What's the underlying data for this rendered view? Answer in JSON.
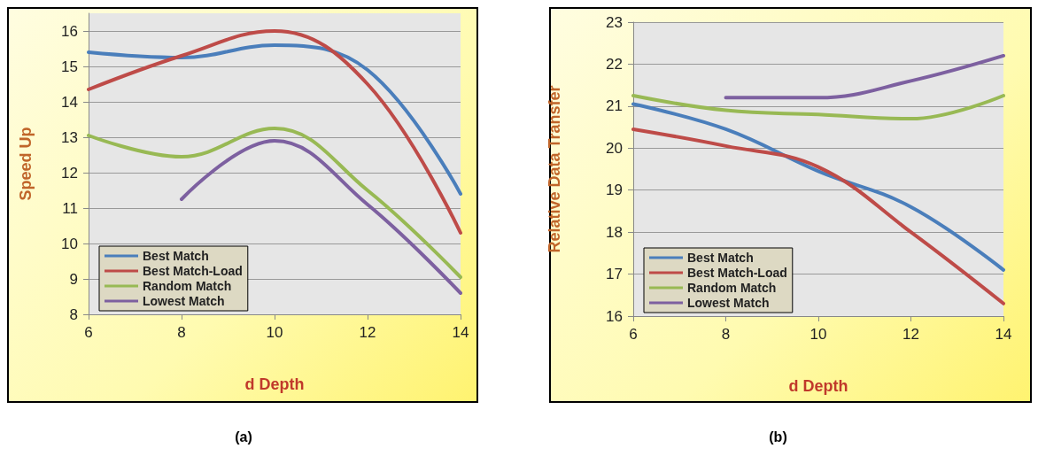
{
  "chart_data": [
    {
      "type": "line",
      "title": "(a)",
      "xlabel": "d Depth",
      "ylabel": "Speed Up",
      "x": [
        6,
        8,
        10,
        12,
        14
      ],
      "xlim": [
        6,
        14
      ],
      "xticks": [
        6,
        8,
        10,
        12,
        14
      ],
      "ylim": [
        8,
        16.5
      ],
      "yticks": [
        8,
        9,
        10,
        11,
        12,
        13,
        14,
        15,
        16
      ],
      "grid": "y",
      "legend": "bottom left",
      "marker": "none",
      "line_style": "solid",
      "series": [
        {
          "name": "Best Match",
          "color": "#4a7ebb",
          "values": [
            15.4,
            15.25,
            15.6,
            14.9,
            11.4
          ]
        },
        {
          "name": "Best Match-Load",
          "color": "#be4b48",
          "values": [
            14.35,
            15.3,
            16.0,
            14.5,
            10.3
          ]
        },
        {
          "name": "Random Match",
          "color": "#98b954",
          "values": [
            13.05,
            12.45,
            13.25,
            11.5,
            9.05
          ]
        },
        {
          "name": "Lowest Match",
          "color": "#7d60a0",
          "values": [
            null,
            11.25,
            12.9,
            11.1,
            8.6
          ]
        }
      ]
    },
    {
      "type": "line",
      "title": "(b)",
      "xlabel": "d Depth",
      "ylabel": "Relative Data Transfer",
      "x": [
        6,
        8,
        10,
        12,
        14
      ],
      "xlim": [
        6,
        14
      ],
      "xticks": [
        6,
        8,
        10,
        12,
        14
      ],
      "ylim": [
        16,
        23
      ],
      "yticks": [
        16,
        17,
        18,
        19,
        20,
        21,
        22,
        23
      ],
      "grid": "y",
      "legend": "bottom left",
      "marker": "none",
      "line_style": "solid",
      "series": [
        {
          "name": "Best Match",
          "color": "#4a7ebb",
          "values": [
            21.05,
            20.45,
            19.45,
            18.6,
            17.1
          ]
        },
        {
          "name": "Best Match-Load",
          "color": "#be4b48",
          "values": [
            20.45,
            20.05,
            19.55,
            18.0,
            16.3
          ]
        },
        {
          "name": "Random Match",
          "color": "#98b954",
          "values": [
            21.25,
            20.9,
            20.8,
            20.7,
            21.25
          ]
        },
        {
          "name": "Lowest Match",
          "color": "#7d60a0",
          "values": [
            null,
            21.2,
            21.2,
            21.6,
            22.2
          ]
        }
      ]
    }
  ]
}
